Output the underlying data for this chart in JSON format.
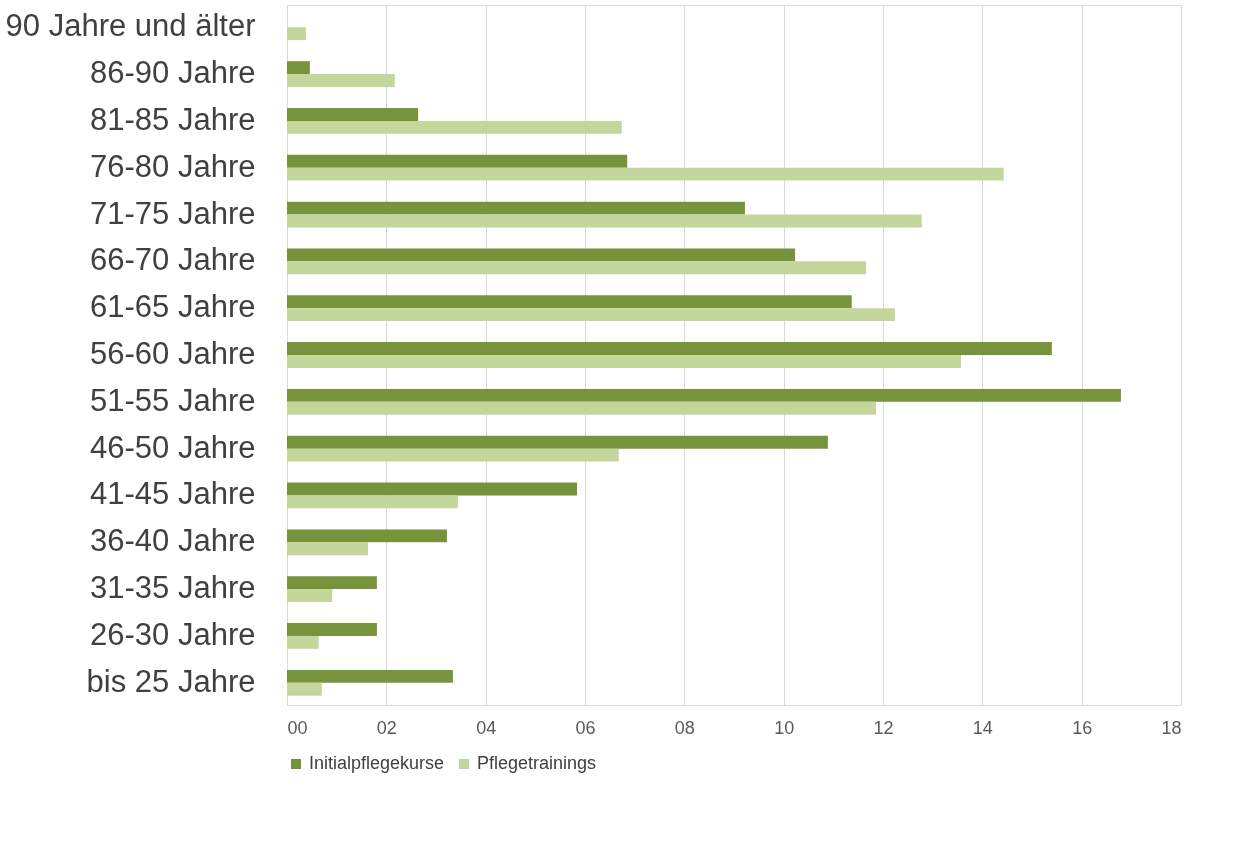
{
  "chart_data": {
    "type": "bar",
    "orientation": "horizontal",
    "categories": [
      "90 Jahre und älter",
      "86-90 Jahre",
      "81-85 Jahre",
      "76-80 Jahre",
      "71-75 Jahre",
      "66-70 Jahre",
      "61-65 Jahre",
      "56-60 Jahre",
      "51-55 Jahre",
      "46-50 Jahre",
      "41-45 Jahre",
      "36-40 Jahre",
      "31-35 Jahre",
      "26-30 Jahre",
      "bis 25 Jahre"
    ],
    "series": [
      {
        "name": "Initialpflegekurse",
        "color": "#77933c",
        "values": [
          null,
          0.46,
          2.64,
          6.85,
          9.22,
          10.23,
          11.37,
          15.4,
          16.79,
          10.89,
          5.84,
          3.22,
          1.81,
          1.81,
          3.34
        ]
      },
      {
        "name": "Pflegetrainings",
        "color": "#c3d69b",
        "values": [
          0.38,
          2.17,
          6.74,
          14.43,
          12.78,
          11.66,
          12.24,
          13.57,
          11.86,
          6.68,
          3.44,
          1.63,
          0.91,
          0.64,
          0.7
        ]
      }
    ],
    "xlim": [
      0,
      18
    ],
    "xticks": [
      {
        "value": 0,
        "label": "00"
      },
      {
        "value": 2,
        "label": "02"
      },
      {
        "value": 4,
        "label": "04"
      },
      {
        "value": 6,
        "label": "06"
      },
      {
        "value": 8,
        "label": "08"
      },
      {
        "value": 10,
        "label": "10"
      },
      {
        "value": 12,
        "label": "12"
      },
      {
        "value": 14,
        "label": "14"
      },
      {
        "value": 16,
        "label": "16"
      },
      {
        "value": 18,
        "label": "18"
      }
    ],
    "grid": "x",
    "legend": "bottom"
  }
}
